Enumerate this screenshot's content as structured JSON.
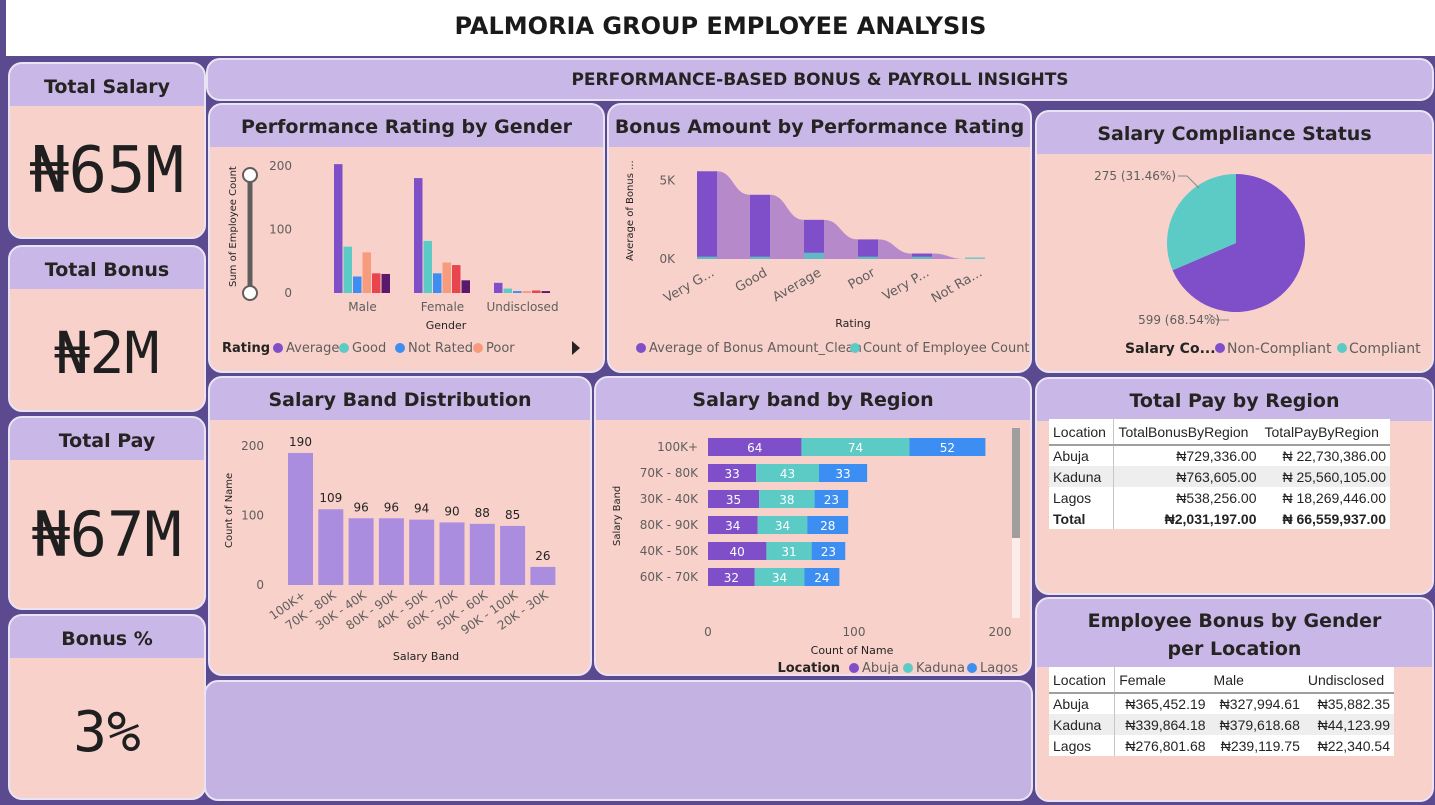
{
  "title": "PALMORIA GROUP EMPLOYEE ANALYSIS",
  "section_banner": "PERFORMANCE-BASED BONUS & PAYROLL INSIGHTS",
  "kpis": [
    {
      "label": "Total Salary",
      "value": "₦65M"
    },
    {
      "label": "Total Bonus",
      "value": "₦2M"
    },
    {
      "label": "Total Pay",
      "value": "₦67M"
    },
    {
      "label": "Bonus %",
      "value": "3%"
    }
  ],
  "colors": {
    "purple": "#7f4fca",
    "teal": "#5ccbc6",
    "blue": "#3d8ef2",
    "salmon": "#f79b7e",
    "red": "#e8454f",
    "darkpurple": "#5a1a6b",
    "lavender": "#ab8de0"
  },
  "chart_data": [
    {
      "type": "bar",
      "title": "Performance Rating by Gender",
      "xlabel": "Gender",
      "ylabel": "Sum of Employee Count",
      "categories": [
        "Male",
        "Female",
        "Undisclosed"
      ],
      "ylim": [
        0,
        230
      ],
      "yticks": [
        "200",
        "100",
        "0"
      ],
      "series": [
        {
          "name": "Average",
          "values": [
            203,
            181,
            16
          ]
        },
        {
          "name": "Good",
          "values": [
            73,
            82,
            7
          ]
        },
        {
          "name": "Not Rated",
          "values": [
            26,
            31,
            3
          ]
        },
        {
          "name": "Poor",
          "values": [
            64,
            48,
            3
          ]
        },
        {
          "name": "",
          "values": [
            31,
            44,
            4
          ]
        },
        {
          "name": "",
          "values": [
            30,
            20,
            3
          ]
        }
      ],
      "legend_title": "Rating",
      "legend_position": "bottom"
    },
    {
      "type": "area",
      "title": "Bonus Amount by Performance Rating",
      "xlabel": "Rating",
      "ylabel": "Average of Bonus ...",
      "categories": [
        "Very G...",
        "Good",
        "Average",
        "Poor",
        "Very P...",
        "Not Ra..."
      ],
      "yticks": [
        "5K",
        "0K"
      ],
      "ylim": [
        0,
        6000
      ],
      "series": [
        {
          "name": "Average of Bonus Amount_Clean",
          "values": [
            5600,
            4100,
            2500,
            1250,
            350,
            0
          ]
        },
        {
          "name": "Count of Employee Count",
          "values": [
            150,
            150,
            400,
            150,
            150,
            100
          ]
        }
      ],
      "legend_position": "bottom"
    },
    {
      "type": "pie",
      "title": "Salary Compliance Status",
      "legend_title": "Salary Co...",
      "slices": [
        {
          "name": "Non-Compliant",
          "value": 599,
          "label": "599 (68.54%)"
        },
        {
          "name": "Compliant",
          "value": 275,
          "label": "275 (31.46%)"
        }
      ],
      "legend_position": "bottom"
    },
    {
      "type": "bar",
      "title": "Salary Band Distribution",
      "xlabel": "Salary Band",
      "ylabel": "Count of Name",
      "categories": [
        "100K+",
        "70K - 80K",
        "30K - 40K",
        "80K - 90K",
        "40K - 50K",
        "60K - 70K",
        "50K - 60K",
        "90K - 100K",
        "20K - 30K"
      ],
      "values": [
        190,
        109,
        96,
        96,
        94,
        90,
        88,
        85,
        26
      ],
      "ylim": [
        0,
        210
      ],
      "yticks": [
        "200",
        "100",
        "0"
      ]
    },
    {
      "type": "bar",
      "orientation": "horizontal-stacked",
      "title": "Salary band by Region",
      "xlabel": "Count of Name",
      "ylabel": "Salary Band",
      "categories": [
        "100K+",
        "70K - 80K",
        "30K - 40K",
        "80K - 90K",
        "40K - 50K",
        "60K - 70K"
      ],
      "xlim": [
        0,
        200
      ],
      "xticks": [
        "0",
        "100",
        "200"
      ],
      "legend_title": "Location",
      "series": [
        {
          "name": "Abuja",
          "values": [
            64,
            33,
            35,
            34,
            40,
            32
          ]
        },
        {
          "name": "Kaduna",
          "values": [
            74,
            43,
            38,
            34,
            31,
            34
          ]
        },
        {
          "name": "Lagos",
          "values": [
            52,
            33,
            23,
            28,
            23,
            24
          ]
        }
      ],
      "legend_position": "bottom"
    },
    {
      "type": "table",
      "title": "Total Pay by Region",
      "columns": [
        "Location",
        "TotalBonusByRegion",
        "TotalPayByRegion"
      ],
      "rows": [
        [
          "Abuja",
          "₦729,336.00",
          "₦ 22,730,386.00"
        ],
        [
          "Kaduna",
          "₦763,605.00",
          "₦ 25,560,105.00"
        ],
        [
          "Lagos",
          "₦538,256.00",
          "₦ 18,269,446.00"
        ]
      ],
      "total": [
        "Total",
        "₦2,031,197.00",
        "₦ 66,559,937.00"
      ]
    },
    {
      "type": "table",
      "title": "Employee Bonus by Gender per Location",
      "columns": [
        "Location",
        "Female",
        "Male",
        "Undisclosed"
      ],
      "rows": [
        [
          "Abuja",
          "₦365,452.19",
          "₦327,994.61",
          "₦35,882.35"
        ],
        [
          "Kaduna",
          "₦339,864.18",
          "₦379,618.68",
          "₦44,123.99"
        ],
        [
          "Lagos",
          "₦276,801.68",
          "₦239,119.75",
          "₦22,340.54"
        ]
      ]
    }
  ]
}
